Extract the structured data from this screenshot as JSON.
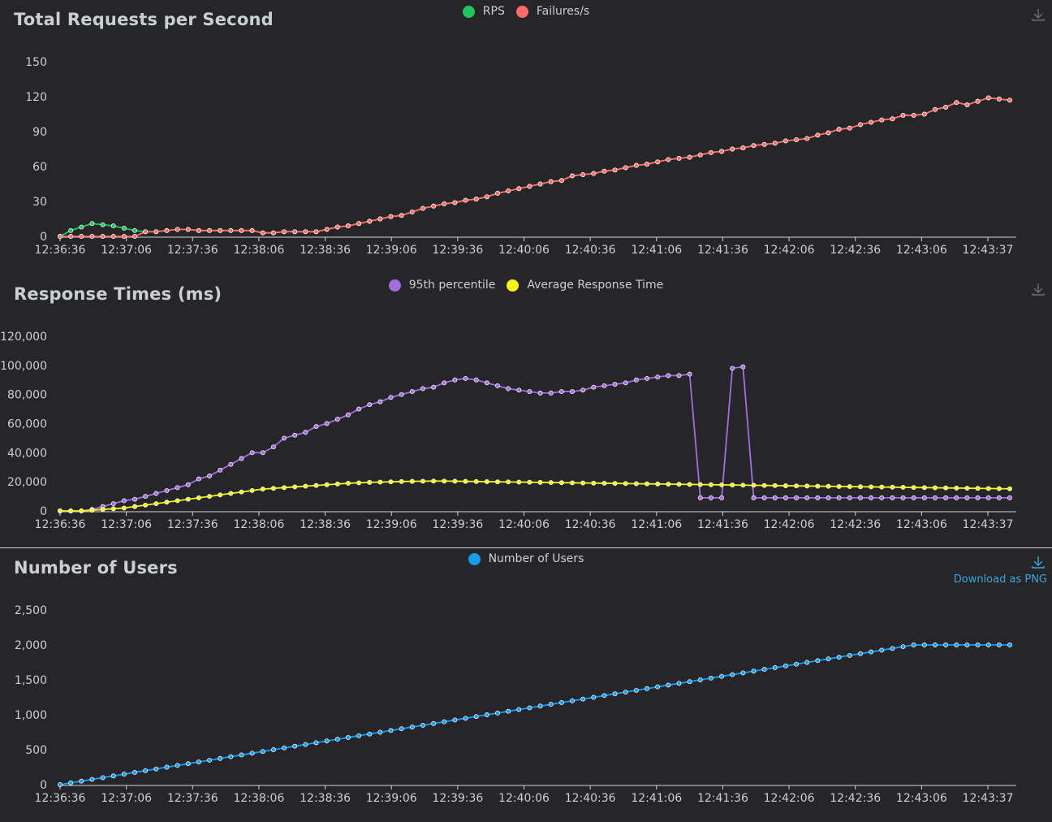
{
  "charts": [
    {
      "title": "Total Requests per Second",
      "download_label": "",
      "chart_data": {
        "type": "line",
        "x_tick_labels": [
          "12:36:36",
          "12:37:06",
          "12:37:36",
          "12:38:06",
          "12:38:36",
          "12:39:06",
          "12:39:36",
          "12:40:06",
          "12:40:36",
          "12:41:06",
          "12:41:36",
          "12:42:06",
          "12:42:36",
          "12:43:06",
          "12:43:37"
        ],
        "ylim": [
          0,
          150
        ],
        "y_ticks": [
          0,
          30,
          60,
          90,
          120,
          150
        ],
        "y_tick_labels": [
          "0",
          "30",
          "60",
          "90",
          "120",
          "150"
        ],
        "series": [
          {
            "name": "RPS",
            "color": "#22c55e",
            "values": [
              0,
              5,
              8,
              11,
              10,
              9,
              7,
              5,
              4,
              4,
              5,
              6,
              6,
              5,
              5,
              5,
              5,
              5,
              5,
              3,
              3,
              4,
              4,
              4,
              4,
              6,
              8,
              9,
              11,
              13,
              15,
              17,
              18,
              21,
              24,
              26,
              28,
              29,
              31,
              32,
              34,
              37,
              39,
              41,
              43,
              45,
              47,
              48,
              52,
              53,
              54,
              56,
              57,
              59,
              61,
              62,
              64,
              66,
              67,
              68,
              70,
              72,
              73,
              75,
              76,
              78,
              79,
              80,
              82,
              83,
              84,
              87,
              89,
              92,
              93,
              96,
              98,
              100,
              101,
              104,
              104,
              105,
              109,
              111,
              115,
              113,
              116,
              119,
              118,
              117
            ]
          },
          {
            "name": "Failures/s",
            "color": "#ff6b6b",
            "values": [
              0,
              0,
              0,
              0,
              0,
              0,
              0,
              0,
              4,
              4,
              5,
              6,
              6,
              5,
              5,
              5,
              5,
              5,
              5,
              3,
              3,
              4,
              4,
              4,
              4,
              6,
              8,
              9,
              11,
              13,
              15,
              17,
              18,
              21,
              24,
              26,
              28,
              29,
              31,
              32,
              34,
              37,
              39,
              41,
              43,
              45,
              47,
              48,
              52,
              53,
              54,
              56,
              57,
              59,
              61,
              62,
              64,
              66,
              67,
              68,
              70,
              72,
              73,
              75,
              76,
              78,
              79,
              80,
              82,
              83,
              84,
              87,
              89,
              92,
              93,
              96,
              98,
              100,
              101,
              104,
              104,
              105,
              109,
              111,
              115,
              113,
              116,
              119,
              118,
              117
            ]
          }
        ]
      }
    },
    {
      "title": "Response Times (ms)",
      "download_label": "",
      "chart_data": {
        "type": "line",
        "x_tick_labels": [
          "12:36:36",
          "12:37:06",
          "12:37:36",
          "12:38:06",
          "12:38:36",
          "12:39:06",
          "12:39:36",
          "12:40:06",
          "12:40:36",
          "12:41:06",
          "12:41:36",
          "12:42:06",
          "12:42:36",
          "12:43:06",
          "12:43:37"
        ],
        "ylim": [
          0,
          120000
        ],
        "y_ticks": [
          0,
          20000,
          40000,
          60000,
          80000,
          100000,
          120000
        ],
        "y_tick_labels": [
          "0",
          "20,000",
          "40,000",
          "60,000",
          "80,000",
          "100,000",
          "120,000"
        ],
        "series": [
          {
            "name": "95th percentile",
            "color": "#a46ddd",
            "values": [
              0,
              0,
              0,
              1000,
              3000,
              5000,
              7000,
              8000,
              10000,
              12000,
              14000,
              16000,
              18000,
              22000,
              24000,
              28000,
              32000,
              36000,
              40000,
              40000,
              44000,
              50000,
              52000,
              54000,
              58000,
              60000,
              63000,
              66000,
              70000,
              73000,
              75000,
              78000,
              80000,
              82000,
              84000,
              85000,
              88000,
              90000,
              91000,
              90000,
              88000,
              86000,
              84000,
              83000,
              82000,
              81000,
              81000,
              82000,
              82000,
              83000,
              85000,
              86000,
              87000,
              88000,
              90000,
              91000,
              92000,
              93000,
              93000,
              94000,
              9000,
              9000,
              9000,
              98000,
              99000,
              9000,
              9000,
              9000,
              9000,
              9000,
              9000,
              9000,
              9000,
              9000,
              9000,
              9000,
              9000,
              9000,
              9000,
              9000,
              9000,
              9000,
              9000,
              9000,
              9000,
              9000,
              9000,
              9000,
              9000,
              9000
            ]
          },
          {
            "name": "Average Response Time",
            "color": "#f5f51e",
            "values": [
              0,
              0,
              0,
              500,
              1000,
              1500,
              2000,
              3000,
              4000,
              5000,
              6000,
              7000,
              8000,
              9000,
              10000,
              11000,
              12000,
              13000,
              14000,
              15000,
              15500,
              16000,
              16500,
              17000,
              17500,
              18000,
              18500,
              19000,
              19300,
              19600,
              19800,
              20000,
              20200,
              20300,
              20400,
              20500,
              20500,
              20400,
              20300,
              20200,
              20100,
              20000,
              19900,
              19800,
              19700,
              19600,
              19500,
              19400,
              19300,
              19200,
              19100,
              19000,
              18900,
              18800,
              18700,
              18600,
              18500,
              18400,
              18300,
              18200,
              18100,
              18000,
              17900,
              17800,
              17700,
              17600,
              17500,
              17400,
              17300,
              17200,
              17100,
              17000,
              16900,
              16800,
              16700,
              16600,
              16500,
              16400,
              16300,
              16200,
              16100,
              16000,
              15900,
              15800,
              15700,
              15600,
              15500,
              15400,
              15300,
              15200
            ]
          }
        ]
      }
    },
    {
      "title": "Number of Users",
      "download_label": "Download as PNG",
      "chart_data": {
        "type": "line",
        "x_tick_labels": [
          "12:36:36",
          "12:37:06",
          "12:37:36",
          "12:38:06",
          "12:38:36",
          "12:39:06",
          "12:39:36",
          "12:40:06",
          "12:40:36",
          "12:41:06",
          "12:41:36",
          "12:42:06",
          "12:42:36",
          "12:43:06",
          "12:43:37"
        ],
        "ylim": [
          0,
          2500
        ],
        "y_ticks": [
          0,
          500,
          1000,
          1500,
          2000,
          2500
        ],
        "y_tick_labels": [
          "0",
          "500",
          "1,000",
          "1,500",
          "2,000",
          "2,500"
        ],
        "series": [
          {
            "name": "Number of Users",
            "color": "#1a9bf0",
            "values": [
              0,
              25,
              50,
              75,
              100,
              125,
              150,
              175,
              200,
              225,
              250,
              275,
              300,
              325,
              350,
              375,
              400,
              425,
              450,
              475,
              500,
              525,
              550,
              575,
              600,
              625,
              650,
              675,
              700,
              725,
              750,
              775,
              800,
              825,
              850,
              875,
              900,
              925,
              950,
              975,
              1000,
              1025,
              1050,
              1075,
              1100,
              1125,
              1150,
              1175,
              1200,
              1225,
              1250,
              1275,
              1300,
              1325,
              1350,
              1375,
              1400,
              1425,
              1450,
              1475,
              1500,
              1525,
              1550,
              1575,
              1600,
              1625,
              1650,
              1675,
              1700,
              1725,
              1750,
              1775,
              1800,
              1825,
              1850,
              1875,
              1900,
              1925,
              1950,
              1975,
              2000,
              2000,
              2000,
              2000,
              2000,
              2000,
              2000,
              2000,
              2000,
              2000
            ]
          }
        ]
      }
    }
  ]
}
